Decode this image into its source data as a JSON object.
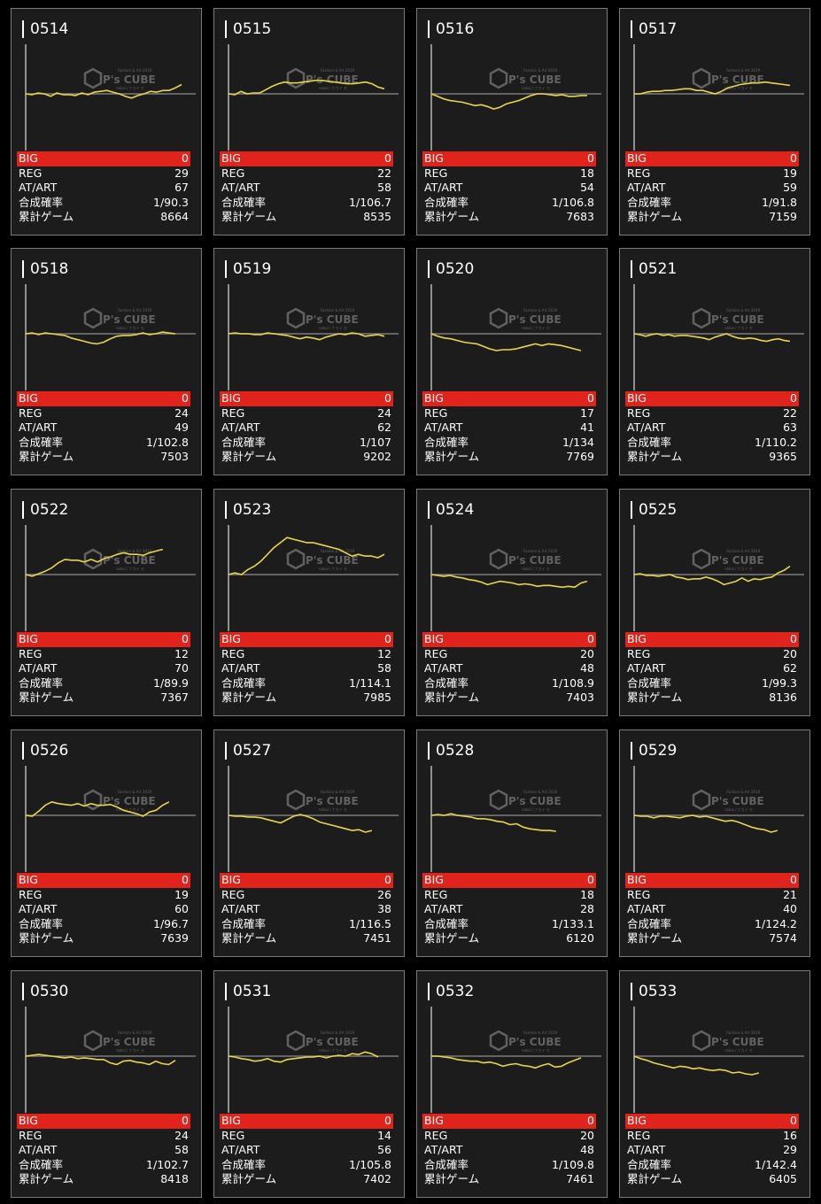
{
  "labels": {
    "big": "BIG",
    "reg": "REG",
    "at": "AT/ART",
    "prob": "合成確率",
    "games": "累計ゲーム"
  },
  "watermark": {
    "brand": "P's CUBE",
    "top": "Fashion & Art 2019",
    "sub": "nakai / ナカイ モ"
  },
  "colors": {
    "line": "#e8d64a",
    "big_bg": "#e0241b",
    "card_bg": "#1c1c1c"
  },
  "machines": [
    {
      "id": "0514",
      "big": "0",
      "reg": "29",
      "at": "67",
      "prob": "1/90.3",
      "games": "8664",
      "trend": [
        0,
        -1,
        1,
        0,
        -3,
        1,
        -1,
        -1,
        -2,
        1,
        -1,
        2,
        3,
        4,
        2,
        0,
        -3,
        -5,
        -2,
        0,
        3,
        2,
        4,
        4,
        7,
        11
      ]
    },
    {
      "id": "0515",
      "big": "0",
      "reg": "22",
      "at": "58",
      "prob": "1/106.7",
      "games": "8535",
      "trend": [
        0,
        -1,
        3,
        0,
        1,
        1,
        5,
        9,
        12,
        14,
        13,
        13,
        14,
        15,
        16,
        16,
        15,
        14,
        13,
        12,
        12,
        13,
        14,
        12,
        8,
        6
      ]
    },
    {
      "id": "0516",
      "big": "0",
      "reg": "18",
      "at": "54",
      "prob": "1/106.8",
      "games": "7683",
      "trend": [
        0,
        -3,
        -6,
        -8,
        -9,
        -10,
        -12,
        -14,
        -13,
        -15,
        -18,
        -16,
        -12,
        -10,
        -8,
        -5,
        -2,
        0,
        0,
        -1,
        -2,
        -1,
        -3,
        -3,
        -2,
        -2
      ]
    },
    {
      "id": "0517",
      "big": "0",
      "reg": "19",
      "at": "59",
      "prob": "1/91.8",
      "games": "7159",
      "trend": [
        0,
        0,
        2,
        3,
        3,
        4,
        4,
        5,
        6,
        6,
        4,
        4,
        2,
        0,
        3,
        7,
        9,
        11,
        12,
        13,
        13,
        14,
        13,
        12,
        11,
        10
      ]
    },
    {
      "id": "0518",
      "big": "0",
      "reg": "24",
      "at": "49",
      "prob": "1/102.8",
      "games": "7503",
      "trend": [
        0,
        1,
        -1,
        1,
        0,
        -1,
        -2,
        -5,
        -7,
        -9,
        -11,
        -12,
        -10,
        -6,
        -3,
        -2,
        -2,
        -1,
        1,
        -1,
        0,
        2,
        1,
        0
      ]
    },
    {
      "id": "0519",
      "big": "0",
      "reg": "24",
      "at": "62",
      "prob": "1/107",
      "games": "9202",
      "trend": [
        0,
        1,
        0,
        0,
        -1,
        -1,
        1,
        0,
        -1,
        -2,
        -4,
        -6,
        -4,
        -5,
        -7,
        -4,
        -2,
        0,
        -1,
        1,
        0,
        -3,
        -2,
        -1,
        -3
      ]
    },
    {
      "id": "0520",
      "big": "0",
      "reg": "17",
      "at": "41",
      "prob": "1/134",
      "games": "7769",
      "trend": [
        0,
        -3,
        -5,
        -6,
        -8,
        -10,
        -11,
        -12,
        -15,
        -18,
        -20,
        -19,
        -19,
        -18,
        -16,
        -14,
        -12,
        -14,
        -12,
        -13,
        -14,
        -16,
        -18,
        -20
      ]
    },
    {
      "id": "0521",
      "big": "0",
      "reg": "22",
      "at": "63",
      "prob": "1/110.2",
      "games": "9365",
      "trend": [
        0,
        -1,
        -3,
        -1,
        0,
        -2,
        -1,
        -3,
        -2,
        -2,
        -3,
        -4,
        -5,
        -7,
        -4,
        -2,
        0,
        -3,
        -5,
        -6,
        -5,
        -6,
        -8,
        -9,
        -7,
        -6,
        -8,
        -9
      ]
    },
    {
      "id": "0522",
      "big": "0",
      "reg": "12",
      "at": "70",
      "prob": "1/89.9",
      "games": "7367",
      "trend": [
        0,
        -2,
        1,
        4,
        8,
        14,
        18,
        17,
        17,
        15,
        18,
        15,
        19,
        21,
        24,
        26,
        24,
        24,
        23,
        26,
        28,
        30
      ]
    },
    {
      "id": "0523",
      "big": "0",
      "reg": "12",
      "at": "58",
      "prob": "1/114.1",
      "games": "7985",
      "trend": [
        0,
        2,
        0,
        6,
        10,
        16,
        24,
        32,
        38,
        44,
        42,
        40,
        38,
        38,
        36,
        34,
        32,
        30,
        26,
        22,
        24,
        22,
        22,
        20,
        24
      ]
    },
    {
      "id": "0524",
      "big": "0",
      "reg": "20",
      "at": "48",
      "prob": "1/108.9",
      "games": "7403",
      "trend": [
        0,
        -1,
        -2,
        -1,
        -3,
        -4,
        -6,
        -7,
        -9,
        -12,
        -10,
        -8,
        -9,
        -10,
        -12,
        -11,
        -12,
        -14,
        -13,
        -13,
        -14,
        -15,
        -14,
        -15,
        -10,
        -8
      ]
    },
    {
      "id": "0525",
      "big": "0",
      "reg": "20",
      "at": "62",
      "prob": "1/99.3",
      "games": "8136",
      "trend": [
        0,
        1,
        -1,
        -1,
        -2,
        -1,
        0,
        -3,
        -4,
        -6,
        -5,
        -5,
        -3,
        -5,
        -8,
        -12,
        -10,
        -8,
        -4,
        -8,
        -5,
        -6,
        -4,
        -3,
        2,
        5,
        10
      ]
    },
    {
      "id": "0526",
      "big": "0",
      "reg": "19",
      "at": "60",
      "prob": "1/96.7",
      "games": "7639",
      "trend": [
        0,
        -1,
        5,
        12,
        16,
        14,
        13,
        12,
        14,
        11,
        14,
        12,
        12,
        13,
        10,
        6,
        4,
        2,
        -1,
        4,
        6,
        12,
        16
      ]
    },
    {
      "id": "0527",
      "big": "0",
      "reg": "26",
      "at": "38",
      "prob": "1/116.5",
      "games": "7451",
      "trend": [
        0,
        -1,
        -1,
        -2,
        -2,
        -3,
        -5,
        -7,
        -9,
        -5,
        -1,
        1,
        -1,
        -4,
        -8,
        -10,
        -12,
        -14,
        -16,
        -18,
        -17,
        -20,
        -18
      ]
    },
    {
      "id": "0528",
      "big": "0",
      "reg": "18",
      "at": "28",
      "prob": "1/133.1",
      "games": "6120",
      "trend": [
        0,
        1,
        0,
        2,
        0,
        -1,
        -2,
        -4,
        -4,
        -5,
        -7,
        -8,
        -11,
        -10,
        -14,
        -16,
        -17,
        -18,
        -18,
        -19
      ]
    },
    {
      "id": "0529",
      "big": "0",
      "reg": "21",
      "at": "40",
      "prob": "1/124.2",
      "games": "7574",
      "trend": [
        0,
        -1,
        -1,
        -3,
        -1,
        -1,
        -2,
        -3,
        -1,
        0,
        -2,
        -1,
        -3,
        -5,
        -7,
        -6,
        -8,
        -11,
        -14,
        -16,
        -17,
        -20,
        -18
      ]
    },
    {
      "id": "0530",
      "big": "0",
      "reg": "24",
      "at": "58",
      "prob": "1/102.7",
      "games": "8418",
      "trend": [
        0,
        1,
        2,
        1,
        0,
        -1,
        -2,
        -1,
        -3,
        -2,
        -3,
        -4,
        -4,
        -8,
        -10,
        -6,
        -5,
        -7,
        -8,
        -10,
        -6,
        -9,
        -10,
        -5
      ]
    },
    {
      "id": "0531",
      "big": "0",
      "reg": "14",
      "at": "56",
      "prob": "1/105.8",
      "games": "7402",
      "trend": [
        0,
        -1,
        -3,
        -4,
        -6,
        -5,
        -3,
        -6,
        -7,
        -4,
        -3,
        -2,
        -1,
        -1,
        0,
        -2,
        0,
        1,
        0,
        3,
        2,
        5,
        3,
        -1
      ]
    },
    {
      "id": "0532",
      "big": "0",
      "reg": "20",
      "at": "48",
      "prob": "1/109.8",
      "games": "7461",
      "trend": [
        0,
        0,
        -1,
        -2,
        -4,
        -5,
        -6,
        -6,
        -8,
        -7,
        -9,
        -12,
        -10,
        -9,
        -11,
        -12,
        -14,
        -11,
        -9,
        -13,
        -12,
        -8,
        -5,
        -2
      ]
    },
    {
      "id": "0533",
      "big": "0",
      "reg": "16",
      "at": "29",
      "prob": "1/142.4",
      "games": "6405",
      "trend": [
        0,
        -3,
        -5,
        -8,
        -10,
        -12,
        -14,
        -12,
        -13,
        -15,
        -14,
        -16,
        -17,
        -16,
        -17,
        -20,
        -19,
        -21,
        -22,
        -20
      ]
    }
  ]
}
